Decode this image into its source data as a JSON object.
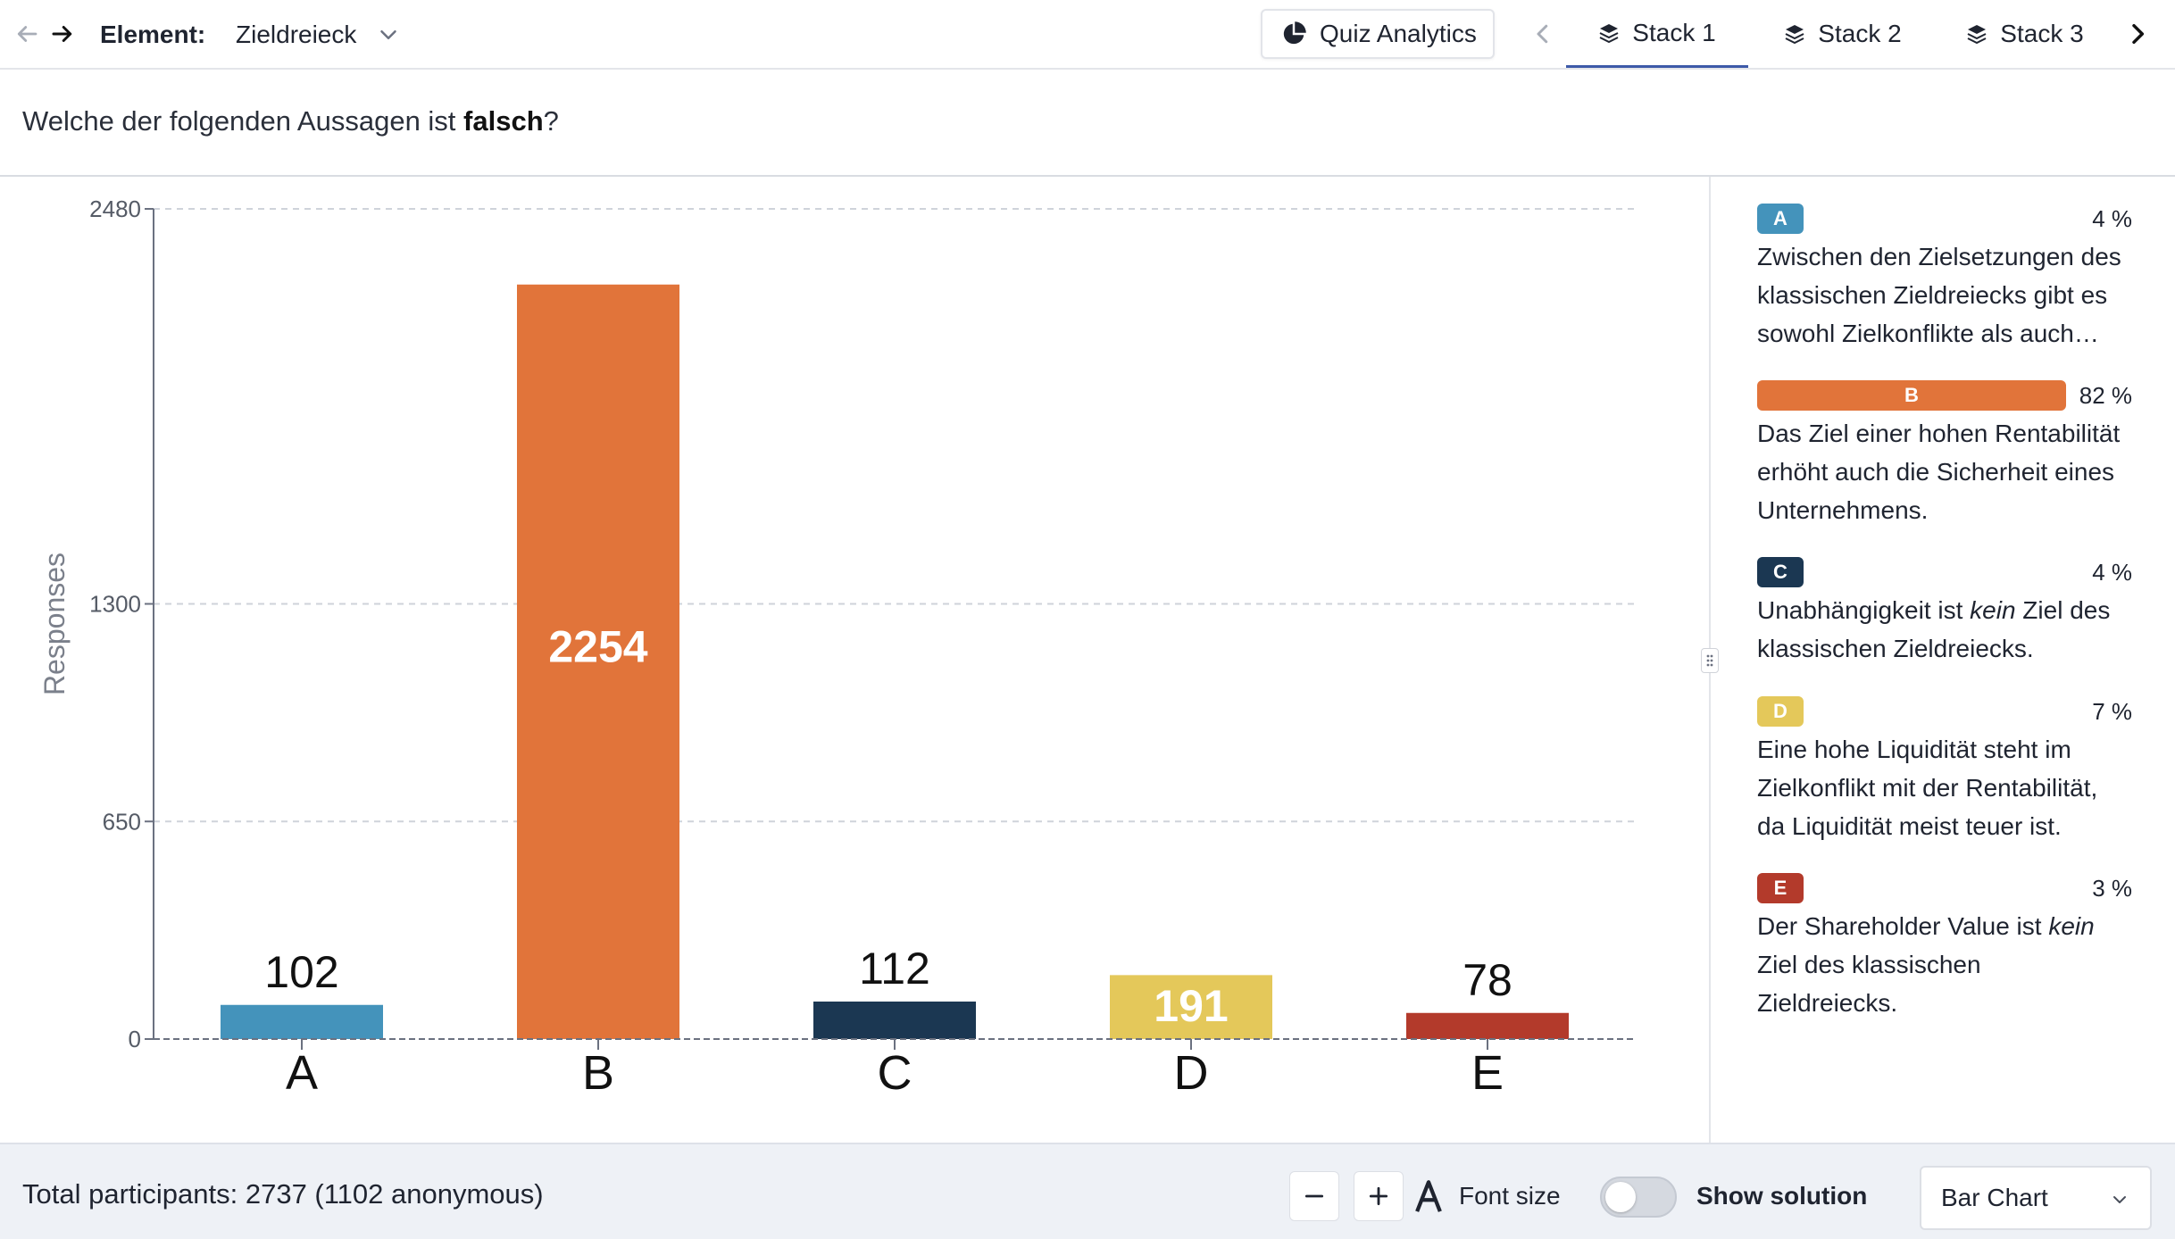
{
  "header": {
    "element_label": "Element:",
    "element_value": "Zieldreieck",
    "analytics_button": "Quiz Analytics",
    "tabs": [
      {
        "label": "Stack 1",
        "active": true
      },
      {
        "label": "Stack 2",
        "active": false
      },
      {
        "label": "Stack 3",
        "active": false
      }
    ],
    "icons": [
      "arrow-left-icon",
      "arrow-right-icon",
      "chevron-down-icon",
      "pie-chart-icon",
      "layers-icon",
      "chevron-left-icon",
      "chevron-right-icon"
    ]
  },
  "question": {
    "prefix": "Welche der folgenden Aussagen ist ",
    "emphasis": "falsch",
    "suffix": "?"
  },
  "chart_data": {
    "type": "bar",
    "categories": [
      "A",
      "B",
      "C",
      "D",
      "E"
    ],
    "values": [
      102,
      2254,
      112,
      191,
      78
    ],
    "colors": [
      "#4493bb",
      "#e1743a",
      "#1b3752",
      "#e4c85a",
      "#b33a2b"
    ],
    "label_inside": [
      false,
      true,
      false,
      true,
      false
    ],
    "title": "",
    "xlabel": "",
    "ylabel": "Responses",
    "ylim": [
      0,
      2480
    ],
    "yticks": [
      0,
      650,
      1300,
      2480
    ],
    "grid": true
  },
  "legend": {
    "items": [
      {
        "letter": "A",
        "percent": "4 %",
        "fill": 0.04,
        "color": "#4493bb",
        "text_parts": [
          {
            "t": "Zwischen den Zielsetzungen des klassischen Zieldreiecks gibt es sowohl Zielkonflikte als auch…",
            "i": false
          }
        ]
      },
      {
        "letter": "B",
        "percent": "82 %",
        "fill": 0.82,
        "color": "#e1743a",
        "text_parts": [
          {
            "t": "Das Ziel einer hohen Rentabilität erhöht auch die Sicherheit eines Unternehmens.",
            "i": false
          }
        ]
      },
      {
        "letter": "C",
        "percent": "4 %",
        "fill": 0.04,
        "color": "#1b3752",
        "text_parts": [
          {
            "t": "Unabhängigkeit ist ",
            "i": false
          },
          {
            "t": "kein",
            "i": true
          },
          {
            "t": " Ziel des klassischen Zieldreiecks.",
            "i": false
          }
        ]
      },
      {
        "letter": "D",
        "percent": "7 %",
        "fill": 0.07,
        "color": "#e4c85a",
        "text_parts": [
          {
            "t": "Eine hohe Liquidität steht im Zielkonflikt mit der Rentabilität, da Liquidität meist teuer ist.",
            "i": false
          }
        ]
      },
      {
        "letter": "E",
        "percent": "3 %",
        "fill": 0.03,
        "color": "#b33a2b",
        "text_parts": [
          {
            "t": "Der Shareholder Value ist ",
            "i": false
          },
          {
            "t": "kein",
            "i": true
          },
          {
            "t": " Ziel des klassischen Zieldreiecks.",
            "i": false
          }
        ]
      }
    ]
  },
  "footer": {
    "total_text": "Total participants: 2737 (1102 anonymous)",
    "font_size_label": "Font size",
    "show_solution_label": "Show solution",
    "show_solution_on": false,
    "chart_type_value": "Bar Chart"
  }
}
